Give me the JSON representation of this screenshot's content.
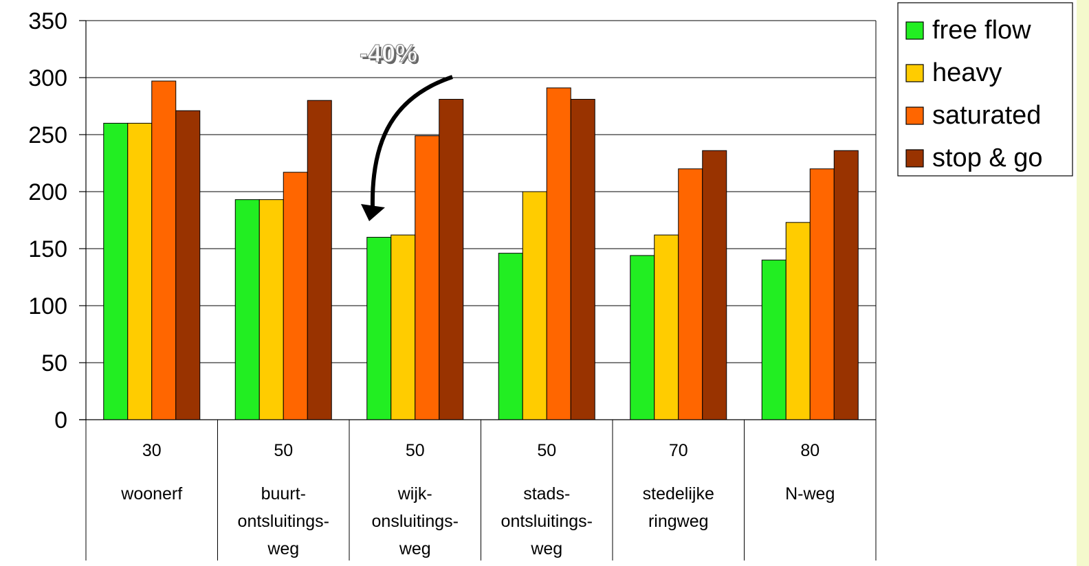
{
  "chart_data": {
    "type": "bar",
    "ylim": [
      0,
      350
    ],
    "yticks": [
      0,
      50,
      100,
      150,
      200,
      250,
      300,
      350
    ],
    "grid": true,
    "legend_position": "top-right",
    "categories": [
      {
        "speed": "30",
        "name_lines": [
          "woonerf"
        ]
      },
      {
        "speed": "50",
        "name_lines": [
          "buurt-",
          "ontsluitings-",
          "weg"
        ]
      },
      {
        "speed": "50",
        "name_lines": [
          "wijk-",
          "onsluitings-",
          "weg"
        ]
      },
      {
        "speed": "50",
        "name_lines": [
          "stads-",
          "ontsluitings-",
          "weg"
        ]
      },
      {
        "speed": "70",
        "name_lines": [
          "stedelijke",
          "ringweg"
        ]
      },
      {
        "speed": "80",
        "name_lines": [
          "N-weg"
        ]
      }
    ],
    "series": [
      {
        "name": "free flow",
        "color": "#22ee22",
        "values": [
          260,
          193,
          160,
          146,
          144,
          140
        ]
      },
      {
        "name": "heavy",
        "color": "#ffcc00",
        "values": [
          260,
          193,
          162,
          200,
          162,
          173
        ]
      },
      {
        "name": "saturated",
        "color": "#ff6600",
        "values": [
          297,
          217,
          249,
          291,
          220,
          220
        ]
      },
      {
        "name": "stop & go",
        "color": "#993300",
        "values": [
          271,
          280,
          281,
          281,
          236,
          236
        ]
      }
    ],
    "annotation": {
      "text": "-40%",
      "points_to_category": 2,
      "color": "#000000"
    }
  },
  "page": {
    "edge_color": "#f4f9cc"
  }
}
